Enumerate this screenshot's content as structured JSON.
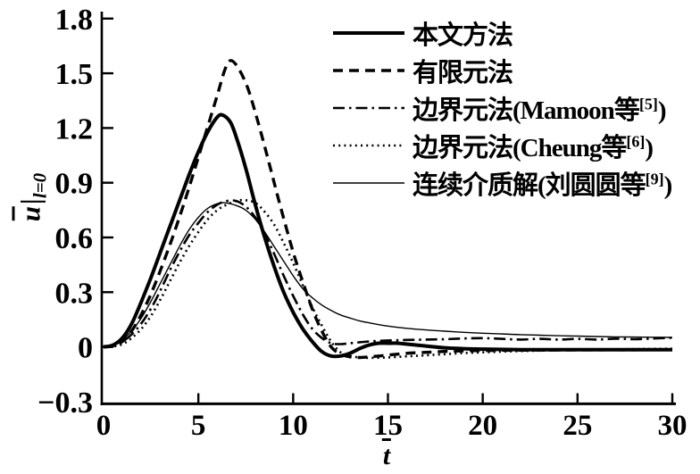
{
  "figure": {
    "background": "#ffffff",
    "foreground": "#000000"
  },
  "axes": {
    "x": {
      "symbol": "t"
    },
    "y": {
      "symbol": "u",
      "pipe": "|",
      "condition": "l=0"
    }
  },
  "legend": {
    "items": [
      {
        "pre": "本文方法",
        "sup": "",
        "post": "",
        "line_style": "solid-thick"
      },
      {
        "pre": "有限元法",
        "sup": "",
        "post": "",
        "line_style": "dashed"
      },
      {
        "pre": "边界元法(Mamoon等",
        "sup": "[5]",
        "post": ")",
        "line_style": "dash-dot"
      },
      {
        "pre": "边界元法(Cheung等",
        "sup": "[6]",
        "post": ")",
        "line_style": "dotted"
      },
      {
        "pre": "连续介质解(刘圆圆等",
        "sup": "[9]",
        "post": ")",
        "line_style": "solid-thin"
      }
    ]
  },
  "chart_data": {
    "type": "line",
    "title": "",
    "xlabel": "t̄",
    "ylabel": "ū|l=0",
    "xlim": [
      0,
      30
    ],
    "ylim": [
      -0.3,
      1.8
    ],
    "grid": false,
    "legend_position": "top-right",
    "x_ticks": [
      {
        "v": 0,
        "label": "0"
      },
      {
        "v": 5,
        "label": "5"
      },
      {
        "v": 10,
        "label": "10"
      },
      {
        "v": 15,
        "label": "15"
      },
      {
        "v": 20,
        "label": "20"
      },
      {
        "v": 25,
        "label": "25"
      },
      {
        "v": 30,
        "label": "30"
      }
    ],
    "y_ticks": [
      {
        "v": 1.8,
        "label": "1.8"
      },
      {
        "v": 1.5,
        "label": "1.5"
      },
      {
        "v": 1.2,
        "label": "1.2"
      },
      {
        "v": 0.9,
        "label": "0.9"
      },
      {
        "v": 0.6,
        "label": "0.6"
      },
      {
        "v": 0.3,
        "label": "0.3"
      },
      {
        "v": 0,
        "label": "0"
      },
      {
        "v": -0.3,
        "label": "−0.3"
      }
    ],
    "series": [
      {
        "name": "本文方法",
        "line_style": "solid-thick",
        "points": [
          [
            0,
            0
          ],
          [
            0.5,
            0.01
          ],
          [
            1,
            0.05
          ],
          [
            1.5,
            0.13
          ],
          [
            2,
            0.25
          ],
          [
            2.5,
            0.38
          ],
          [
            3,
            0.52
          ],
          [
            3.5,
            0.66
          ],
          [
            4,
            0.8
          ],
          [
            4.5,
            0.94
          ],
          [
            5,
            1.07
          ],
          [
            5.5,
            1.18
          ],
          [
            6,
            1.26
          ],
          [
            6.3,
            1.27
          ],
          [
            6.7,
            1.23
          ],
          [
            7,
            1.15
          ],
          [
            7.5,
            0.98
          ],
          [
            8,
            0.78
          ],
          [
            8.5,
            0.6
          ],
          [
            9,
            0.44
          ],
          [
            9.5,
            0.3
          ],
          [
            10,
            0.19
          ],
          [
            10.5,
            0.1
          ],
          [
            11,
            0.03
          ],
          [
            11.5,
            -0.025
          ],
          [
            12,
            -0.05
          ],
          [
            12.5,
            -0.05
          ],
          [
            13,
            -0.035
          ],
          [
            13.5,
            -0.01
          ],
          [
            14,
            0.01
          ],
          [
            14.5,
            0.02
          ],
          [
            15,
            0.02
          ],
          [
            15.5,
            0.02
          ],
          [
            16,
            0.015
          ],
          [
            17,
            0.005
          ],
          [
            18,
            -0.005
          ],
          [
            19,
            -0.01
          ],
          [
            20,
            -0.012
          ],
          [
            22,
            -0.015
          ],
          [
            24,
            -0.015
          ],
          [
            26,
            -0.015
          ],
          [
            28,
            -0.015
          ],
          [
            30,
            -0.015
          ]
        ]
      },
      {
        "name": "有限元法",
        "line_style": "dashed",
        "points": [
          [
            0,
            0
          ],
          [
            0.5,
            0.005
          ],
          [
            1,
            0.03
          ],
          [
            1.5,
            0.09
          ],
          [
            2,
            0.18
          ],
          [
            2.5,
            0.29
          ],
          [
            3,
            0.42
          ],
          [
            3.5,
            0.56
          ],
          [
            4,
            0.71
          ],
          [
            4.5,
            0.87
          ],
          [
            5,
            1.04
          ],
          [
            5.5,
            1.21
          ],
          [
            6,
            1.38
          ],
          [
            6.4,
            1.52
          ],
          [
            6.7,
            1.57
          ],
          [
            7.1,
            1.53
          ],
          [
            7.6,
            1.42
          ],
          [
            8.1,
            1.25
          ],
          [
            8.7,
            1.02
          ],
          [
            9.3,
            0.78
          ],
          [
            10,
            0.52
          ],
          [
            10.5,
            0.36
          ],
          [
            11,
            0.21
          ],
          [
            11.5,
            0.09
          ],
          [
            12,
            0
          ],
          [
            12.5,
            -0.04
          ],
          [
            13,
            -0.055
          ],
          [
            13.5,
            -0.058
          ],
          [
            14,
            -0.055
          ],
          [
            15,
            -0.045
          ],
          [
            16,
            -0.035
          ],
          [
            17,
            -0.03
          ],
          [
            18,
            -0.025
          ],
          [
            19,
            -0.022
          ],
          [
            20,
            -0.02
          ],
          [
            22,
            -0.018
          ],
          [
            24,
            -0.017
          ],
          [
            26,
            -0.016
          ],
          [
            28,
            -0.016
          ],
          [
            30,
            -0.015
          ]
        ]
      },
      {
        "name": "边界元法(Mamoon等[5])",
        "line_style": "dash-dot",
        "points": [
          [
            0,
            0
          ],
          [
            0.5,
            0.005
          ],
          [
            1,
            0.03
          ],
          [
            1.5,
            0.07
          ],
          [
            2,
            0.13
          ],
          [
            2.5,
            0.21
          ],
          [
            3,
            0.31
          ],
          [
            3.5,
            0.42
          ],
          [
            4,
            0.52
          ],
          [
            4.5,
            0.61
          ],
          [
            5,
            0.68
          ],
          [
            5.5,
            0.74
          ],
          [
            6,
            0.78
          ],
          [
            6.5,
            0.8
          ],
          [
            7,
            0.8
          ],
          [
            7.5,
            0.77
          ],
          [
            8,
            0.71
          ],
          [
            8.5,
            0.62
          ],
          [
            9,
            0.51
          ],
          [
            9.5,
            0.39
          ],
          [
            10,
            0.28
          ],
          [
            10.5,
            0.18
          ],
          [
            11,
            0.1
          ],
          [
            11.5,
            0.05
          ],
          [
            12,
            0.02
          ],
          [
            12.5,
            0.015
          ],
          [
            13,
            0.02
          ],
          [
            14,
            0.03
          ],
          [
            15,
            0.035
          ],
          [
            16,
            0.038
          ],
          [
            17,
            0.04
          ],
          [
            18,
            0.042
          ],
          [
            19,
            0.046
          ],
          [
            20,
            0.048
          ],
          [
            21,
            0.044
          ],
          [
            22,
            0.04
          ],
          [
            23,
            0.044
          ],
          [
            24,
            0.04
          ],
          [
            25,
            0.044
          ],
          [
            26,
            0.04
          ],
          [
            27,
            0.045
          ],
          [
            28,
            0.042
          ],
          [
            29,
            0.046
          ],
          [
            30,
            0.05
          ]
        ]
      },
      {
        "name": "边界元法(Cheung等[6])",
        "line_style": "dotted",
        "points": [
          [
            0,
            0
          ],
          [
            0.5,
            0.002
          ],
          [
            1,
            0.015
          ],
          [
            1.5,
            0.05
          ],
          [
            2,
            0.1
          ],
          [
            2.5,
            0.17
          ],
          [
            3,
            0.26
          ],
          [
            3.5,
            0.36
          ],
          [
            4,
            0.46
          ],
          [
            4.5,
            0.55
          ],
          [
            5,
            0.63
          ],
          [
            5.5,
            0.7
          ],
          [
            6,
            0.75
          ],
          [
            6.5,
            0.78
          ],
          [
            7,
            0.8
          ],
          [
            7.4,
            0.805
          ],
          [
            8,
            0.79
          ],
          [
            8.5,
            0.74
          ],
          [
            9,
            0.67
          ],
          [
            9.5,
            0.57
          ],
          [
            10,
            0.46
          ],
          [
            10.5,
            0.34
          ],
          [
            11,
            0.22
          ],
          [
            11.5,
            0.12
          ],
          [
            12,
            0.03
          ],
          [
            12.5,
            -0.03
          ],
          [
            13,
            -0.05
          ],
          [
            13.5,
            -0.058
          ],
          [
            14,
            -0.06
          ],
          [
            15,
            -0.058
          ],
          [
            16,
            -0.052
          ],
          [
            17,
            -0.046
          ],
          [
            18,
            -0.04
          ],
          [
            19,
            -0.034
          ],
          [
            20,
            -0.03
          ],
          [
            21,
            -0.026
          ],
          [
            22,
            -0.023
          ],
          [
            24,
            -0.018
          ],
          [
            26,
            -0.015
          ],
          [
            28,
            -0.012
          ],
          [
            30,
            -0.01
          ]
        ]
      },
      {
        "name": "连续介质解(刘圆圆等[9])",
        "line_style": "solid-thin",
        "points": [
          [
            0,
            0
          ],
          [
            0.5,
            0.01
          ],
          [
            1,
            0.04
          ],
          [
            1.5,
            0.09
          ],
          [
            2,
            0.16
          ],
          [
            2.5,
            0.25
          ],
          [
            3,
            0.35
          ],
          [
            3.5,
            0.45
          ],
          [
            4,
            0.55
          ],
          [
            4.5,
            0.64
          ],
          [
            5,
            0.71
          ],
          [
            5.5,
            0.76
          ],
          [
            6,
            0.785
          ],
          [
            6.4,
            0.79
          ],
          [
            7,
            0.775
          ],
          [
            7.5,
            0.75
          ],
          [
            8,
            0.7
          ],
          [
            8.5,
            0.63
          ],
          [
            9,
            0.55
          ],
          [
            9.5,
            0.47
          ],
          [
            10,
            0.39
          ],
          [
            10.5,
            0.32
          ],
          [
            11,
            0.27
          ],
          [
            11.5,
            0.23
          ],
          [
            12,
            0.2
          ],
          [
            12.5,
            0.175
          ],
          [
            13,
            0.158
          ],
          [
            13.5,
            0.143
          ],
          [
            14,
            0.132
          ],
          [
            15,
            0.114
          ],
          [
            16,
            0.102
          ],
          [
            17,
            0.093
          ],
          [
            18,
            0.086
          ],
          [
            19,
            0.08
          ],
          [
            20,
            0.075
          ],
          [
            21,
            0.071
          ],
          [
            22,
            0.067
          ],
          [
            23,
            0.064
          ],
          [
            24,
            0.061
          ],
          [
            25,
            0.059
          ],
          [
            26,
            0.057
          ],
          [
            27,
            0.055
          ],
          [
            28,
            0.054
          ],
          [
            29,
            0.053
          ],
          [
            30,
            0.052
          ]
        ]
      }
    ]
  }
}
